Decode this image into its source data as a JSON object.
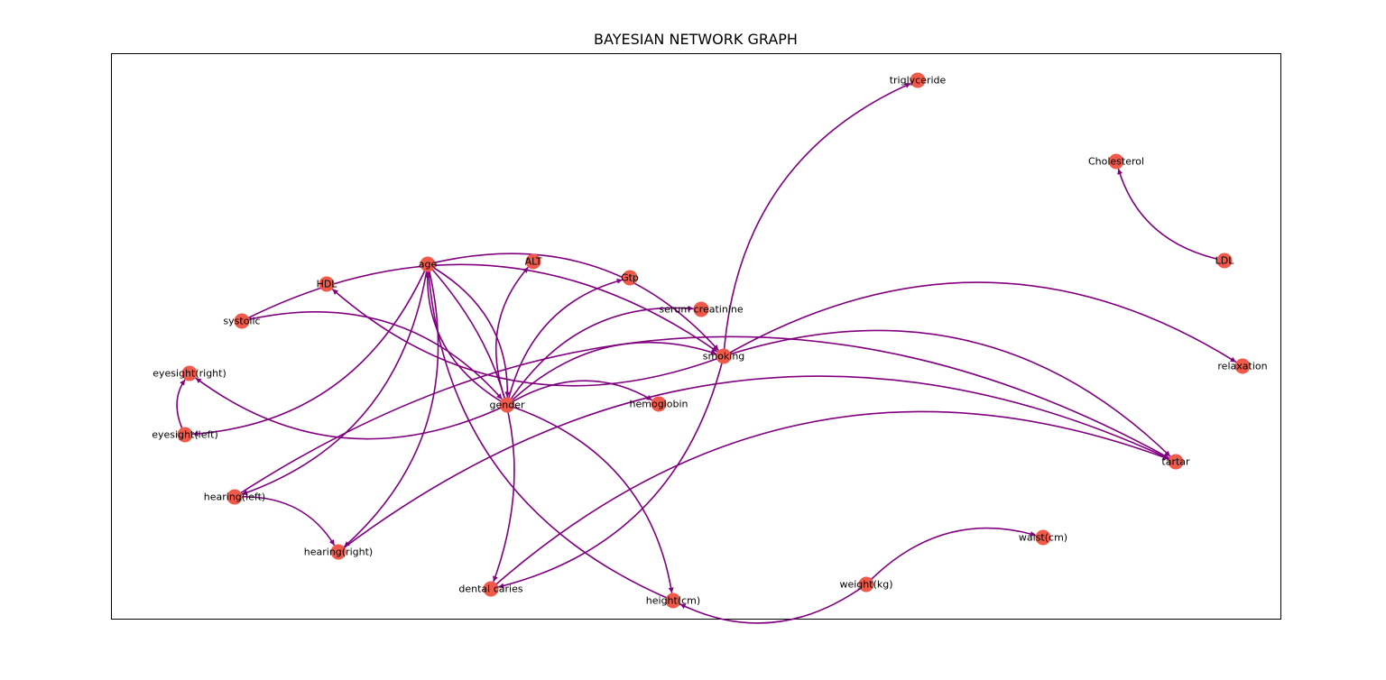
{
  "title": "BAYESIAN NETWORK GRAPH",
  "colors": {
    "node": "#f05a4a",
    "edge": "#800080",
    "frame": "#000000"
  },
  "nodes": [
    {
      "id": "triglyceride",
      "label": "triglyceride"
    },
    {
      "id": "Cholesterol",
      "label": "Cholesterol"
    },
    {
      "id": "LDL",
      "label": "LDL"
    },
    {
      "id": "age",
      "label": "age"
    },
    {
      "id": "ALT",
      "label": "ALT"
    },
    {
      "id": "Gtp",
      "label": "Gtp"
    },
    {
      "id": "HDL",
      "label": "HDL"
    },
    {
      "id": "serum_creatinine",
      "label": "serum creatinine"
    },
    {
      "id": "systolic",
      "label": "systolic"
    },
    {
      "id": "smoking",
      "label": "smoking"
    },
    {
      "id": "relaxation",
      "label": "relaxation"
    },
    {
      "id": "eyesight_right",
      "label": "eyesight(right)"
    },
    {
      "id": "gender",
      "label": "gender"
    },
    {
      "id": "hemoglobin",
      "label": "hemoglobin"
    },
    {
      "id": "eyesight_left",
      "label": "eyesight(left)"
    },
    {
      "id": "tartar",
      "label": "tartar"
    },
    {
      "id": "hearing_left",
      "label": "hearing(left)"
    },
    {
      "id": "waist",
      "label": "waist(cm)"
    },
    {
      "id": "hearing_right",
      "label": "hearing(right)"
    },
    {
      "id": "weight",
      "label": "weight(kg)"
    },
    {
      "id": "dental_caries",
      "label": "dental caries"
    },
    {
      "id": "height",
      "label": "height(cm)"
    }
  ],
  "edges": [
    {
      "from": "LDL",
      "to": "Cholesterol"
    },
    {
      "from": "smoking",
      "to": "triglyceride"
    },
    {
      "from": "smoking",
      "to": "relaxation"
    },
    {
      "from": "smoking",
      "to": "tartar"
    },
    {
      "from": "smoking",
      "to": "HDL"
    },
    {
      "from": "smoking",
      "to": "dental_caries"
    },
    {
      "from": "systolic",
      "to": "smoking"
    },
    {
      "from": "gender",
      "to": "age"
    },
    {
      "from": "gender",
      "to": "ALT"
    },
    {
      "from": "gender",
      "to": "Gtp"
    },
    {
      "from": "gender",
      "to": "serum_creatinine"
    },
    {
      "from": "gender",
      "to": "smoking"
    },
    {
      "from": "gender",
      "to": "hemoglobin"
    },
    {
      "from": "gender",
      "to": "height"
    },
    {
      "from": "gender",
      "to": "eyesight_right"
    },
    {
      "from": "systolic",
      "to": "gender"
    },
    {
      "from": "age",
      "to": "gender"
    },
    {
      "from": "age",
      "to": "smoking"
    },
    {
      "from": "age",
      "to": "eyesight_left"
    },
    {
      "from": "age",
      "to": "hearing_left"
    },
    {
      "from": "age",
      "to": "hearing_right"
    },
    {
      "from": "age",
      "to": "dental_caries"
    },
    {
      "from": "height",
      "to": "age"
    },
    {
      "from": "eyesight_left",
      "to": "eyesight_right"
    },
    {
      "from": "hearing_left",
      "to": "hearing_right"
    },
    {
      "from": "hearing_left",
      "to": "tartar"
    },
    {
      "from": "hearing_right",
      "to": "tartar"
    },
    {
      "from": "dental_caries",
      "to": "tartar"
    },
    {
      "from": "weight",
      "to": "waist"
    },
    {
      "from": "weight",
      "to": "height"
    }
  ]
}
